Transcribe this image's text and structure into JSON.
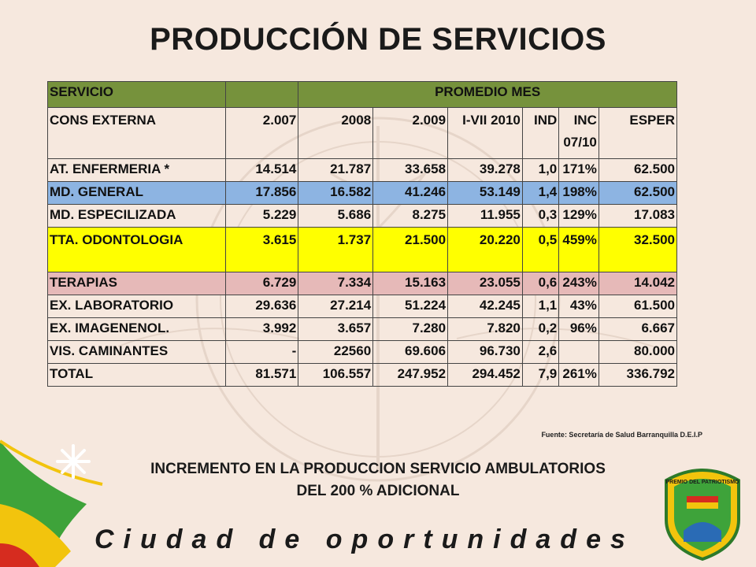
{
  "title": "PRODUCCIÓN DE SERVICIOS",
  "table": {
    "header": {
      "servicio": "SERVICIO",
      "promedio": "PROMEDIO MES"
    },
    "subheader": [
      "CONS EXTERNA",
      "2.007",
      "2008",
      "2.009",
      "I-VII 2010",
      "IND",
      "INC 07/10",
      "ESPER"
    ],
    "rows": [
      [
        "AT. ENFERMERIA *",
        "14.514",
        "21.787",
        "33.658",
        "39.278",
        "1,0",
        "171%",
        "62.500"
      ],
      [
        "MD. GENERAL",
        "17.856",
        "16.582",
        "41.246",
        "53.149",
        "1,4",
        "198%",
        "62.500"
      ],
      [
        "MD. ESPECILIZADA",
        "5.229",
        "5.686",
        "8.275",
        "11.955",
        "0,3",
        "129%",
        "17.083"
      ],
      [
        "TTA. ODONTOLOGIA",
        "3.615",
        "1.737",
        "21.500",
        "20.220",
        "0,5",
        "459%",
        "32.500"
      ],
      [
        "TERAPIAS",
        "6.729",
        "7.334",
        "15.163",
        "23.055",
        "0,6",
        "243%",
        "14.042"
      ],
      [
        "EX. LABORATORIO",
        "29.636",
        "27.214",
        "51.224",
        "42.245",
        "1,1",
        "43%",
        "61.500"
      ],
      [
        "EX. IMAGENENOL.",
        "3.992",
        "3.657",
        "7.280",
        "7.820",
        "0,2",
        "96%",
        "6.667"
      ],
      [
        "VIS. CAMINANTES",
        "-",
        "22560",
        "69.606",
        "96.730",
        "2,6",
        "",
        "80.000"
      ],
      [
        "TOTAL",
        "81.571",
        "106.557",
        "247.952",
        "294.452",
        "7,9",
        "261%",
        "336.792"
      ]
    ]
  },
  "source": "Fuente: Secretaría de Salud Barranquilla D.E.I.P",
  "summary_line1": "INCREMENTO EN LA PRODUCCION SERVICIO AMBULATORIOS",
  "summary_line2": "DEL  200 %  ADICIONAL",
  "tagline": "Ciudad de oportunidades",
  "seal_text": "PREMIO DEL PATRIOTISMO",
  "colors": {
    "header_green": "#76923c",
    "row_blue": "#8db4e2",
    "row_yellow": "#ffff00",
    "row_pink": "#e6b9b8",
    "background": "#f6e8de"
  }
}
